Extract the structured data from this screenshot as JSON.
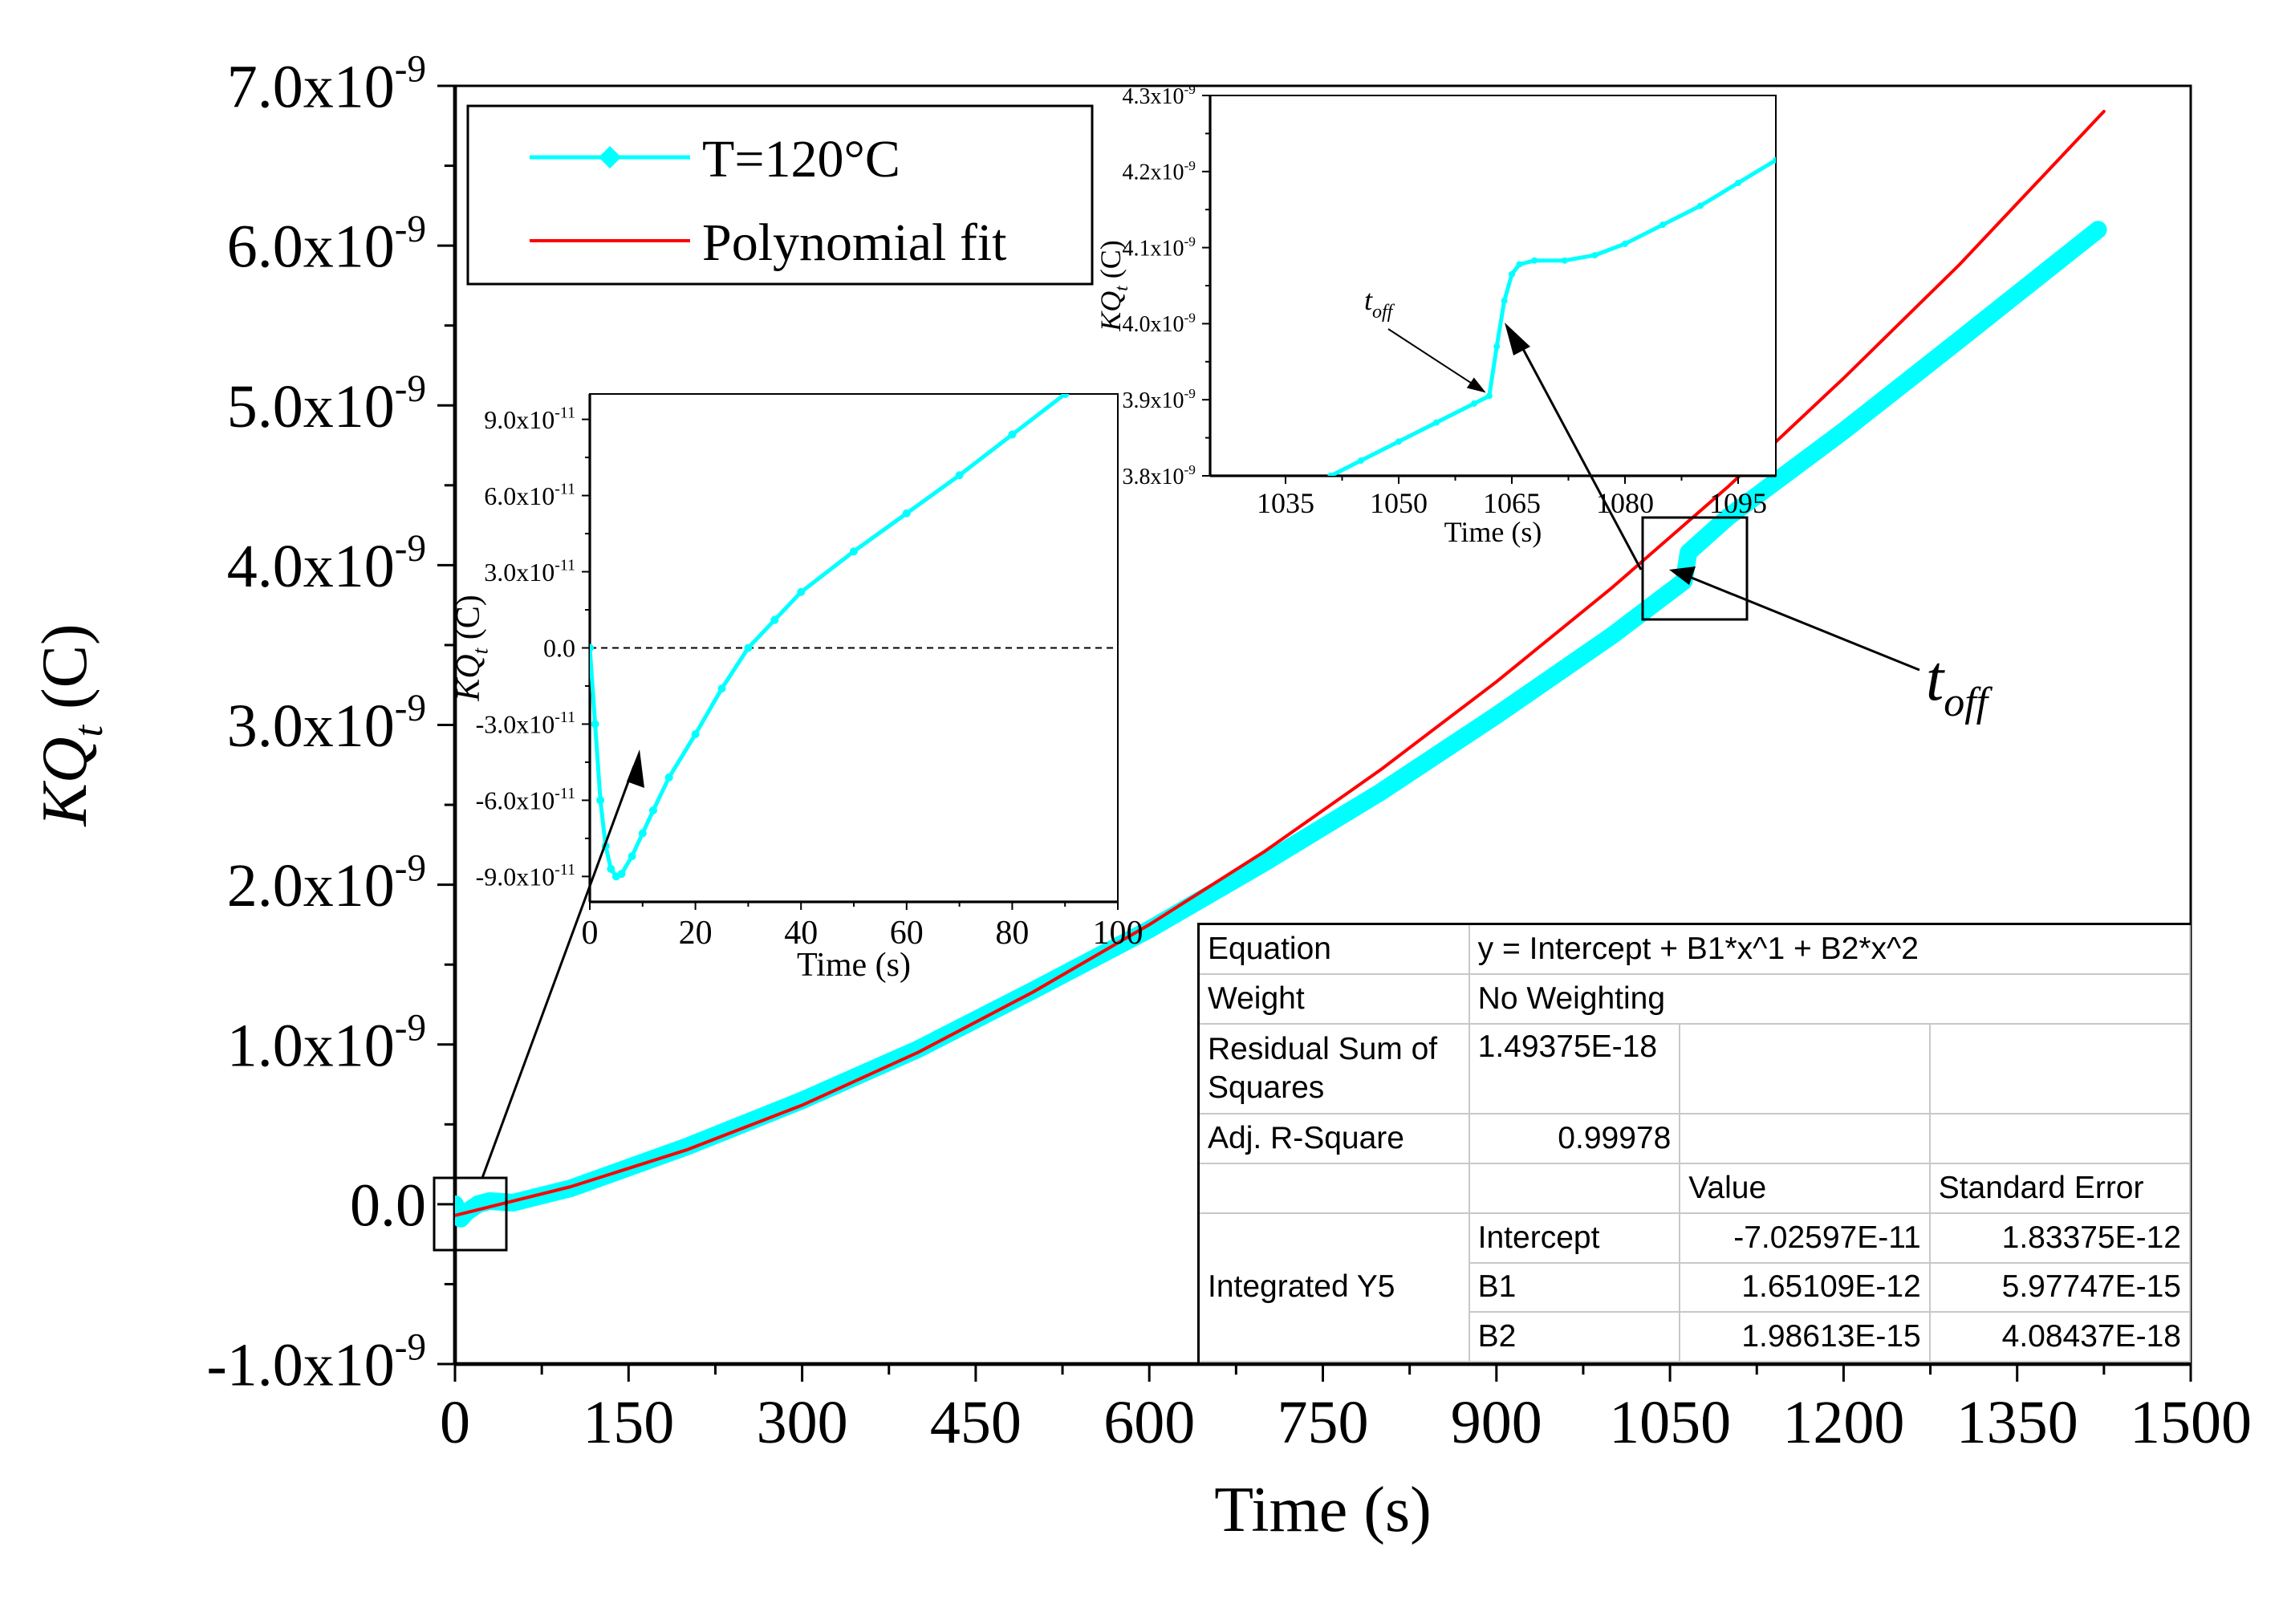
{
  "chart_data": [
    {
      "id": "main",
      "type": "line",
      "xlabel": "Time (s)",
      "ylabel": "KQ",
      "ylabel_subscript": "t",
      "ylabel_unit": "(C)",
      "xlim": [
        0,
        1500
      ],
      "ylim": [
        -1e-09,
        7e-09
      ],
      "x_ticks": [
        0,
        150,
        300,
        450,
        600,
        750,
        900,
        1050,
        1200,
        1350,
        1500
      ],
      "x_tick_labels": [
        "0",
        "150",
        "300",
        "450",
        "600",
        "750",
        "900",
        "1050",
        "1200",
        "1350",
        "1500"
      ],
      "y_ticks": [
        -1e-09,
        0,
        1e-09,
        2e-09,
        3e-09,
        4e-09,
        5e-09,
        6e-09,
        7e-09
      ],
      "y_tick_mantissa": [
        "-1.0x10",
        "0.0",
        "1.0x10",
        "2.0x10",
        "3.0x10",
        "4.0x10",
        "5.0x10",
        "6.0x10",
        "7.0x10"
      ],
      "y_tick_exponent": [
        "-9",
        "",
        "-9",
        "-9",
        "-9",
        "-9",
        "-9",
        "-9",
        "-9"
      ],
      "legend": [
        {
          "label": "T=120°C",
          "color": "#00ffff",
          "marker": "diamond"
        },
        {
          "label": "Polynomial fit",
          "color": "#ff0000"
        }
      ],
      "legend_position": "top-left",
      "series": [
        {
          "name": "T=120°C",
          "color": "#00ffff",
          "x": [
            0,
            5,
            10,
            20,
            30,
            50,
            100,
            150,
            200,
            300,
            400,
            500,
            600,
            700,
            800,
            900,
            1000,
            1062,
            1066,
            1100,
            1200,
            1300,
            1420
          ],
          "y": [
            0,
            -9e-11,
            -5e-11,
            1e-12,
            2e-11,
            1e-11,
            1e-10,
            2.3e-10,
            3.6e-10,
            6.5e-10,
            9.7e-10,
            1.34e-09,
            1.72e-09,
            2.14e-09,
            2.58e-09,
            3.06e-09,
            3.56e-09,
            3.9e-09,
            4.08e-09,
            4.3e-09,
            4.84e-09,
            5.41e-09,
            6.1e-09
          ]
        },
        {
          "name": "Polynomial fit",
          "color": "#ff0000",
          "x": [
            0,
            100,
            200,
            300,
            400,
            500,
            600,
            700,
            800,
            900,
            1000,
            1100,
            1200,
            1300,
            1425
          ],
          "y": [
            -7e-11,
            1.1e-10,
            3.4e-10,
            6.2e-10,
            9.5e-10,
            1.33e-09,
            1.75e-09,
            2.21e-09,
            2.72e-09,
            3.27e-09,
            3.86e-09,
            4.49e-09,
            5.17e-09,
            5.88e-09,
            6.84e-09
          ]
        }
      ],
      "annotations": [
        "t_off"
      ],
      "annotation_text": "t",
      "annotation_subscript": "off"
    },
    {
      "id": "inset_start",
      "type": "line",
      "xlabel": "Time (s)",
      "ylabel": "KQ",
      "ylabel_subscript": "t",
      "ylabel_unit": "(C)",
      "xlim": [
        0,
        100
      ],
      "ylim": [
        -1e-10,
        1e-10
      ],
      "x_ticks": [
        0,
        20,
        40,
        60,
        80,
        100
      ],
      "x_tick_labels": [
        "0",
        "20",
        "40",
        "60",
        "80",
        "100"
      ],
      "y_ticks": [
        -9e-11,
        -6e-11,
        -3e-11,
        0,
        3e-11,
        6e-11,
        9e-11
      ],
      "y_tick_mantissa": [
        "-9.0x10",
        "-6.0x10",
        "-3.0x10",
        "0.0",
        "3.0x10",
        "6.0x10",
        "9.0x10"
      ],
      "y_tick_exponent": [
        "-11",
        "-11",
        "-11",
        "",
        "-11",
        "-11",
        "-11"
      ],
      "reference_line": 0,
      "series": [
        {
          "name": "T=120°C",
          "color": "#00ffff",
          "x": [
            0,
            1,
            2,
            3,
            4,
            5,
            6,
            8,
            10,
            12,
            15,
            20,
            25,
            30,
            35,
            40,
            50,
            60,
            70,
            80,
            90
          ],
          "y": [
            0,
            -3e-11,
            -6e-11,
            -7.8e-11,
            -8.7e-11,
            -9e-11,
            -8.9e-11,
            -8.2e-11,
            -7.3e-11,
            -6.4e-11,
            -5.1e-11,
            -3.4e-11,
            -1.6e-11,
            0,
            1.1e-11,
            2.2e-11,
            3.8e-11,
            5.3e-11,
            6.8e-11,
            8.4e-11,
            1e-10
          ]
        }
      ]
    },
    {
      "id": "inset_toff",
      "type": "line",
      "xlabel": "Time (s)",
      "ylabel": "KQ",
      "ylabel_subscript": "t",
      "ylabel_unit": "(C)",
      "xlim": [
        1025,
        1100
      ],
      "ylim": [
        3.8e-09,
        4.3e-09
      ],
      "x_ticks": [
        1035,
        1050,
        1065,
        1080,
        1095
      ],
      "x_tick_labels": [
        "1035",
        "1050",
        "1065",
        "1080",
        "1095"
      ],
      "y_ticks": [
        3.8e-09,
        3.9e-09,
        4e-09,
        4.1e-09,
        4.2e-09,
        4.3e-09
      ],
      "y_tick_mantissa": [
        "3.8x10",
        "3.9x10",
        "4.0x10",
        "4.1x10",
        "4.2x10",
        "4.3x10"
      ],
      "y_tick_exponent": [
        "-9",
        "-9",
        "-9",
        "-9",
        "-9",
        "-9"
      ],
      "series": [
        {
          "name": "T=120°C",
          "color": "#00ffff",
          "x": [
            1041,
            1045,
            1050,
            1055,
            1060,
            1062,
            1063,
            1064,
            1065,
            1066,
            1068,
            1072,
            1076,
            1080,
            1085,
            1090,
            1095,
            1100
          ],
          "y": [
            3.8e-09,
            3.82e-09,
            3.845e-09,
            3.87e-09,
            3.895e-09,
            3.905e-09,
            3.97e-09,
            4.03e-09,
            4.065e-09,
            4.078e-09,
            4.083e-09,
            4.083e-09,
            4.09e-09,
            4.105e-09,
            4.13e-09,
            4.155e-09,
            4.185e-09,
            4.215e-09
          ]
        }
      ],
      "annotations": [
        "t_off"
      ],
      "annotation_text": "t",
      "annotation_subscript": "off"
    }
  ],
  "fit_table": {
    "rows": [
      [
        "Equation",
        "y = Intercept + B1*x^1 + B2*x^2"
      ],
      [
        "Weight",
        "No Weighting"
      ],
      [
        "Residual Sum of Squares",
        "1.49375E-18"
      ],
      [
        "Adj. R-Square",
        "0.99978"
      ]
    ],
    "value_header": "Value",
    "error_header": "Standard Error",
    "dataset": "Integrated Y5",
    "params": [
      {
        "name": "Intercept",
        "value": "-7.02597E-11",
        "error": "1.83375E-12"
      },
      {
        "name": "B1",
        "value": "1.65109E-12",
        "error": "5.97747E-15"
      },
      {
        "name": "B2",
        "value": "1.98613E-15",
        "error": "4.08437E-18"
      }
    ]
  }
}
